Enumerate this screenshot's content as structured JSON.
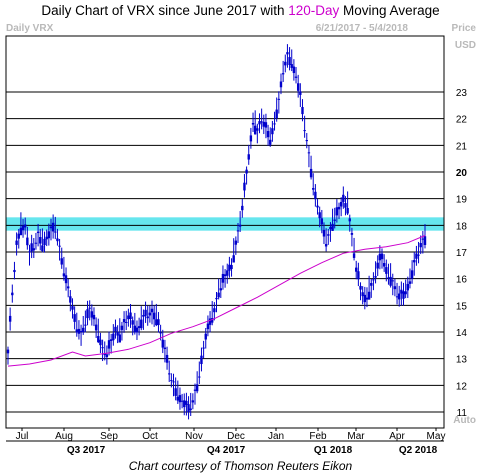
{
  "chart_data": {
    "type": "candlestick",
    "title_parts": [
      "Daily Chart of VRX since June 2017 with ",
      "120-Day",
      " Moving Average"
    ],
    "title_highlight_color": "#cc00cc",
    "watermark_left": "Daily VRX",
    "date_range": "6/21/2017 - 5/4/2018",
    "price_label": "Price",
    "currency_label": "USD",
    "scale_label": "Auto",
    "credit": "Chart courtesy of Thomson Reuters Eikon",
    "ylim": [
      10.4,
      25.1
    ],
    "yticks": [
      11,
      12,
      13,
      14,
      15,
      16,
      17,
      18,
      19,
      20,
      21,
      22,
      23
    ],
    "ytick_labels": [
      "11",
      "12",
      "13",
      "14",
      "15",
      "16",
      "17",
      "18",
      "19",
      "20",
      "21",
      "22",
      "23"
    ],
    "ytick_bold": [
      20
    ],
    "month_labels": [
      "Jul",
      "Aug",
      "Sep",
      "Oct",
      "Nov",
      "Dec",
      "Jan",
      "Feb",
      "Mar",
      "Apr",
      "May"
    ],
    "quarter_labels": [
      "Q3 2017",
      "Q4 2017",
      "Q1 2018",
      "Q2 2018"
    ],
    "band": {
      "low": 17.8,
      "high": 18.3,
      "color": "#66e6ee"
    },
    "price_color": "#0000cc",
    "ma_color": "#cc00cc",
    "price_path": [
      [
        0,
        13.2
      ],
      [
        2,
        15.5
      ],
      [
        4,
        17.2
      ],
      [
        6,
        17.9
      ],
      [
        8,
        18.0
      ],
      [
        10,
        16.9
      ],
      [
        12,
        17.2
      ],
      [
        14,
        17.6
      ],
      [
        16,
        17.3
      ],
      [
        18,
        17.5
      ],
      [
        20,
        17.8
      ],
      [
        22,
        17.9
      ],
      [
        24,
        17.1
      ],
      [
        26,
        16.3
      ],
      [
        28,
        15.6
      ],
      [
        30,
        14.8
      ],
      [
        32,
        14.2
      ],
      [
        34,
        13.9
      ],
      [
        36,
        14.4
      ],
      [
        38,
        14.8
      ],
      [
        40,
        14.5
      ],
      [
        42,
        13.9
      ],
      [
        44,
        13.3
      ],
      [
        46,
        13.2
      ],
      [
        48,
        13.6
      ],
      [
        50,
        14.1
      ],
      [
        52,
        13.9
      ],
      [
        54,
        14.3
      ],
      [
        56,
        14.6
      ],
      [
        58,
        14.3
      ],
      [
        60,
        14.1
      ],
      [
        62,
        14.4
      ],
      [
        64,
        14.6
      ],
      [
        66,
        14.7
      ],
      [
        68,
        14.6
      ],
      [
        70,
        14.4
      ],
      [
        72,
        13.6
      ],
      [
        74,
        12.9
      ],
      [
        76,
        12.2
      ],
      [
        78,
        11.8
      ],
      [
        80,
        11.5
      ],
      [
        82,
        11.3
      ],
      [
        84,
        11.1
      ],
      [
        86,
        11.4
      ],
      [
        88,
        12.0
      ],
      [
        90,
        12.9
      ],
      [
        92,
        13.8
      ],
      [
        94,
        14.4
      ],
      [
        96,
        14.8
      ],
      [
        98,
        15.5
      ],
      [
        100,
        15.9
      ],
      [
        102,
        16.2
      ],
      [
        104,
        16.5
      ],
      [
        106,
        17.3
      ],
      [
        108,
        18.1
      ],
      [
        110,
        19.3
      ],
      [
        112,
        20.6
      ],
      [
        114,
        21.9
      ],
      [
        116,
        21.5
      ],
      [
        118,
        22.0
      ],
      [
        120,
        21.6
      ],
      [
        122,
        21.2
      ],
      [
        124,
        21.9
      ],
      [
        126,
        22.6
      ],
      [
        128,
        23.8
      ],
      [
        130,
        24.3
      ],
      [
        132,
        24.1
      ],
      [
        134,
        23.6
      ],
      [
        136,
        22.8
      ],
      [
        138,
        21.7
      ],
      [
        140,
        20.6
      ],
      [
        142,
        19.5
      ],
      [
        144,
        18.7
      ],
      [
        146,
        18.0
      ],
      [
        148,
        17.4
      ],
      [
        150,
        17.8
      ],
      [
        152,
        18.3
      ],
      [
        154,
        18.6
      ],
      [
        156,
        18.9
      ],
      [
        158,
        18.7
      ],
      [
        160,
        17.6
      ],
      [
        162,
        16.4
      ],
      [
        164,
        15.6
      ],
      [
        166,
        15.2
      ],
      [
        168,
        15.5
      ],
      [
        170,
        15.9
      ],
      [
        172,
        16.5
      ],
      [
        174,
        16.8
      ],
      [
        176,
        16.3
      ],
      [
        178,
        16.0
      ],
      [
        180,
        15.6
      ],
      [
        182,
        15.3
      ],
      [
        184,
        15.4
      ],
      [
        186,
        15.7
      ],
      [
        188,
        16.2
      ],
      [
        190,
        16.8
      ],
      [
        192,
        17.2
      ],
      [
        194,
        17.5
      ]
    ],
    "ma_path": [
      [
        0,
        12.72
      ],
      [
        10,
        12.8
      ],
      [
        20,
        12.95
      ],
      [
        30,
        13.25
      ],
      [
        36,
        13.1
      ],
      [
        46,
        13.2
      ],
      [
        56,
        13.35
      ],
      [
        66,
        13.6
      ],
      [
        76,
        13.95
      ],
      [
        86,
        14.2
      ],
      [
        96,
        14.5
      ],
      [
        106,
        14.9
      ],
      [
        116,
        15.3
      ],
      [
        126,
        15.75
      ],
      [
        136,
        16.2
      ],
      [
        146,
        16.6
      ],
      [
        156,
        16.95
      ],
      [
        166,
        17.1
      ],
      [
        176,
        17.2
      ],
      [
        186,
        17.35
      ],
      [
        194,
        17.62
      ]
    ]
  }
}
